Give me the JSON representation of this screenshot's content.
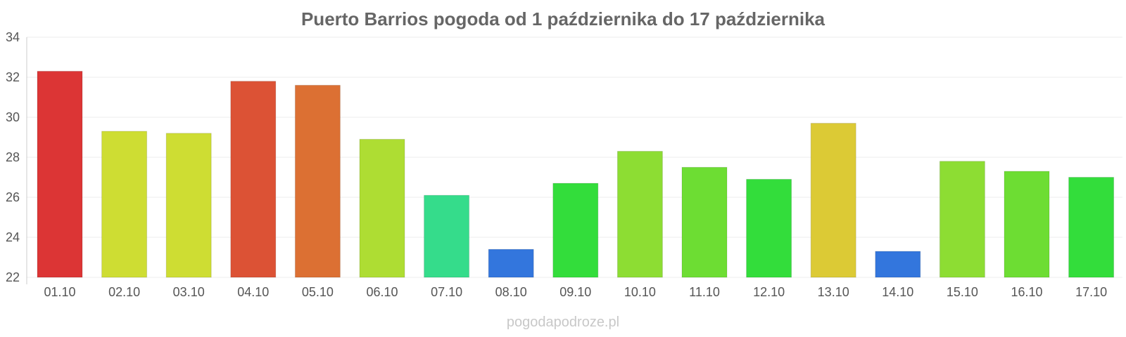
{
  "watermark": "pogodapodroze.pl",
  "chart_data": {
    "type": "bar",
    "title": "Puerto Barrios pogoda od 1 października do 17 października",
    "xlabel": "",
    "ylabel": "",
    "ylim": [
      22,
      34
    ],
    "yticks": [
      22,
      24,
      26,
      28,
      30,
      32,
      34
    ],
    "grid": true,
    "categories": [
      "01.10",
      "02.10",
      "03.10",
      "04.10",
      "05.10",
      "06.10",
      "07.10",
      "08.10",
      "09.10",
      "10.10",
      "11.10",
      "12.10",
      "13.10",
      "14.10",
      "15.10",
      "16.10",
      "17.10"
    ],
    "values": [
      32.3,
      29.3,
      29.2,
      31.8,
      31.6,
      28.9,
      26.1,
      23.4,
      26.7,
      28.3,
      27.5,
      26.9,
      29.7,
      23.3,
      27.8,
      27.3,
      27.0
    ],
    "colors": [
      "#dc3535",
      "#cedd33",
      "#cedd33",
      "#dc5235",
      "#dc7033",
      "#aedd33",
      "#35dc8b",
      "#3376dd",
      "#33dd3b",
      "#8ddd33",
      "#6ddd33",
      "#33dd3b",
      "#dcca35",
      "#3376dd",
      "#8ddd33",
      "#6ddd33",
      "#33dd3b"
    ]
  }
}
